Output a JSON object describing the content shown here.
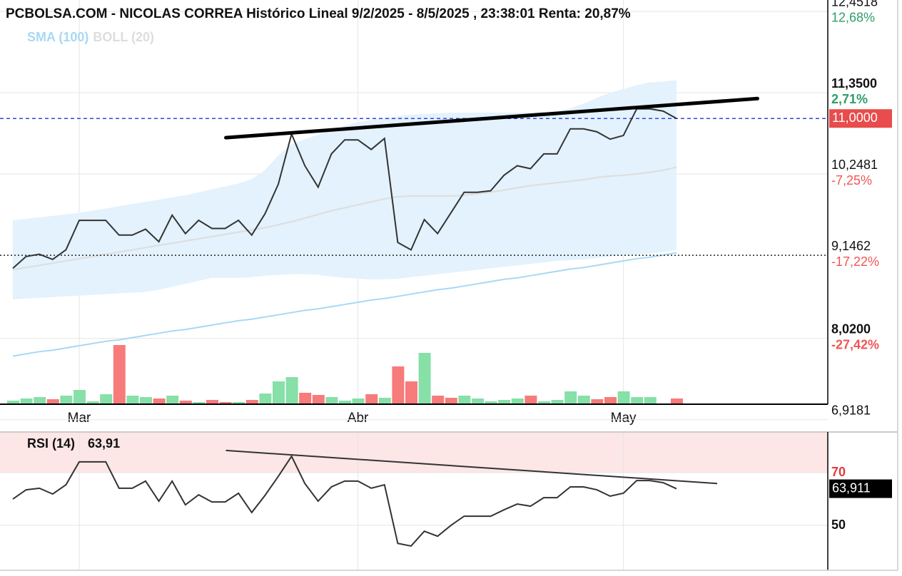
{
  "chart_data": [
    {
      "type": "line",
      "title": "PCBOLSA.COM - NICOLAS CORREA Histórico Lineal 9/2/2025 - 8/5/2025 , 23:38:01 Renta: 20,87%",
      "categories": [
        null,
        null,
        null,
        null,
        null,
        "Mar",
        null,
        null,
        null,
        null,
        null,
        null,
        null,
        null,
        null,
        null,
        null,
        null,
        null,
        null,
        null,
        null,
        null,
        null,
        null,
        null,
        "Abr",
        null,
        null,
        null,
        null,
        null,
        null,
        null,
        null,
        null,
        null,
        null,
        null,
        null,
        null,
        null,
        null,
        null,
        null,
        null,
        "May",
        null,
        null,
        null,
        null
      ],
      "series": [
        {
          "color": "#333333",
          "values": [
            8.97,
            9.13,
            9.16,
            9.09,
            9.22,
            9.62,
            9.62,
            9.62,
            9.42,
            9.42,
            9.5,
            9.33,
            9.69,
            9.44,
            9.62,
            9.51,
            9.51,
            9.62,
            9.42,
            9.71,
            10.11,
            10.79,
            10.36,
            10.07,
            10.52,
            10.71,
            10.71,
            10.58,
            10.73,
            9.32,
            9.22,
            9.63,
            9.44,
            9.72,
            10.0,
            10.0,
            10.02,
            10.23,
            10.36,
            10.32,
            10.52,
            10.52,
            10.86,
            10.86,
            10.82,
            10.72,
            10.77,
            11.13,
            11.13,
            11.1,
            11.0
          ]
        },
        {
          "name": "SMA (100)",
          "color": "#a8d8f5",
          "values": [
            7.78,
            7.81,
            7.84,
            7.86,
            7.89,
            7.92,
            7.95,
            7.98,
            8.0,
            8.03,
            8.06,
            8.09,
            8.12,
            8.14,
            8.17,
            8.2,
            8.23,
            8.26,
            8.28,
            8.31,
            8.34,
            8.37,
            8.4,
            8.42,
            8.45,
            8.48,
            8.51,
            8.54,
            8.56,
            8.59,
            8.62,
            8.65,
            8.68,
            8.7,
            8.73,
            8.76,
            8.79,
            8.82,
            8.84,
            8.87,
            8.9,
            8.93,
            8.96,
            8.98,
            9.01,
            9.04,
            9.07,
            9.1,
            9.12,
            9.15,
            9.18
          ]
        },
        {
          "name": "BOLL (20)",
          "color": "#dddddd",
          "band_color": "#e3f2fc",
          "values": [
            8.95,
            8.98,
            9.01,
            9.04,
            9.07,
            9.1,
            9.13,
            9.16,
            9.19,
            9.22,
            9.25,
            9.28,
            9.31,
            9.34,
            9.37,
            9.4,
            9.43,
            9.46,
            9.49,
            9.52,
            9.56,
            9.6,
            9.65,
            9.7,
            9.75,
            9.79,
            9.83,
            9.87,
            9.91,
            9.94,
            9.95,
            9.95,
            9.95,
            9.95,
            9.96,
            9.98,
            10.0,
            10.03,
            10.06,
            10.09,
            10.11,
            10.13,
            10.15,
            10.17,
            10.2,
            10.22,
            10.23,
            10.25,
            10.27,
            10.3,
            10.34
          ],
          "upper": [
            9.62,
            9.64,
            9.66,
            9.68,
            9.7,
            9.72,
            9.75,
            9.78,
            9.81,
            9.84,
            9.87,
            9.9,
            9.93,
            9.96,
            10.0,
            10.04,
            10.08,
            10.12,
            10.18,
            10.3,
            10.5,
            10.65,
            10.72,
            10.78,
            10.84,
            10.9,
            10.95,
            10.98,
            11.01,
            11.03,
            11.05,
            11.06,
            11.07,
            11.08,
            11.08,
            11.08,
            11.08,
            11.08,
            11.08,
            11.08,
            11.09,
            11.1,
            11.14,
            11.2,
            11.28,
            11.35,
            11.4,
            11.45,
            11.49,
            11.5,
            11.52
          ],
          "lower": [
            8.55,
            8.56,
            8.57,
            8.58,
            8.59,
            8.6,
            8.61,
            8.62,
            8.63,
            8.64,
            8.65,
            8.68,
            8.72,
            8.76,
            8.8,
            8.84,
            8.84,
            8.84,
            8.85,
            8.87,
            8.88,
            8.89,
            8.89,
            8.88,
            8.86,
            8.84,
            8.83,
            8.82,
            8.82,
            8.83,
            8.85,
            8.87,
            8.89,
            8.91,
            8.93,
            8.95,
            8.97,
            8.99,
            9.01,
            9.03,
            9.05,
            9.07,
            9.08,
            9.09,
            9.11,
            9.13,
            9.14,
            9.15,
            9.17,
            9.19,
            9.22
          ]
        }
      ],
      "volume": {
        "values": [
          5,
          8,
          10,
          7,
          12,
          20,
          4,
          14,
          83,
          12,
          10,
          8,
          12,
          5,
          3,
          6,
          3,
          3,
          6,
          15,
          32,
          38,
          16,
          13,
          10,
          5,
          8,
          14,
          9,
          53,
          32,
          72,
          12,
          9,
          12,
          8,
          4,
          6,
          8,
          12,
          4,
          6,
          18,
          12,
          7,
          10,
          18,
          10,
          10,
          0,
          8
        ],
        "colors": [
          "#86e0a8",
          "#86e0a8",
          "#86e0a8",
          "#f77b7b",
          "#86e0a8",
          "#86e0a8",
          "#86e0a8",
          "#86e0a8",
          "#f77b7b",
          "#86e0a8",
          "#86e0a8",
          "#f77b7b",
          "#86e0a8",
          "#f77b7b",
          "#86e0a8",
          "#f77b7b",
          "#f77b7b",
          "#86e0a8",
          "#f77b7b",
          "#86e0a8",
          "#86e0a8",
          "#86e0a8",
          "#f77b7b",
          "#f77b7b",
          "#86e0a8",
          "#86e0a8",
          "#86e0a8",
          "#f77b7b",
          "#86e0a8",
          "#f77b7b",
          "#f77b7b",
          "#86e0a8",
          "#f77b7b",
          "#f77b7b",
          "#86e0a8",
          "#86e0a8",
          "#86e0a8",
          "#86e0a8",
          "#86e0a8",
          "#f77b7b",
          "#86e0a8",
          "#86e0a8",
          "#86e0a8",
          "#86e0a8",
          "#f77b7b",
          "#f77b7b",
          "#86e0a8",
          "#86e0a8",
          "#86e0a8",
          "#86e0a8",
          "#f77b7b"
        ]
      },
      "trendline": {
        "start": 10.74,
        "end": 11.27,
        "color": "#000000"
      },
      "last_price": {
        "value": 11.0,
        "label": "11,0000",
        "color": "#e84c4c"
      },
      "reference_level": 9.1462,
      "ylim": [
        7.128,
        12.606
      ],
      "yticks": [
        {
          "value": 12.4518,
          "label": "12,4518"
        },
        {
          "value": 11.35,
          "label": "11,3500"
        },
        {
          "value": 10.2481,
          "label": "10,2481"
        },
        {
          "value": 9.1462,
          "label": "9,1462"
        },
        {
          "value": 8.02,
          "label": "8,0200"
        },
        {
          "value": 6.9181,
          "label": "6,9181"
        }
      ],
      "ytick_changes": [
        {
          "value": 12.68,
          "label": "12,68%"
        },
        {
          "value": 2.71,
          "label": "2,71%"
        },
        {
          "value": -7.25,
          "label": "-7,25%"
        },
        {
          "value": -17.22,
          "label": "-17,22%"
        },
        {
          "value": -27.42,
          "label": "-27,42%"
        },
        null
      ],
      "grid": true
    },
    {
      "type": "line",
      "title": "RSI (14)",
      "value_label": "63,91",
      "series": [
        {
          "color": "#333333",
          "values": [
            60.0,
            63.5,
            64.1,
            61.9,
            65.4,
            74.1,
            74.1,
            74.1,
            64.1,
            64.1,
            66.8,
            59.2,
            66.8,
            57.8,
            61.6,
            58.9,
            58.9,
            62.2,
            54.9,
            61.4,
            68.6,
            76.2,
            65.9,
            59.2,
            64.6,
            66.8,
            66.8,
            64.1,
            65.4,
            43.2,
            42.2,
            47.8,
            45.9,
            50.0,
            53.5,
            53.5,
            53.5,
            55.9,
            58.1,
            57.3,
            60.5,
            60.5,
            64.6,
            64.6,
            63.5,
            61.1,
            62.2,
            67.0,
            67.0,
            66.2,
            63.91
          ]
        }
      ],
      "trendline": {
        "start": 78.4,
        "end": 65.9,
        "color": "#333333"
      },
      "last_value": {
        "value": 63.911,
        "label": "63,911"
      },
      "overbought": 70,
      "zone_color": "#fde6e6",
      "ylim": [
        33,
        85.4
      ],
      "yticks": [
        70,
        50
      ],
      "grid": true
    }
  ]
}
